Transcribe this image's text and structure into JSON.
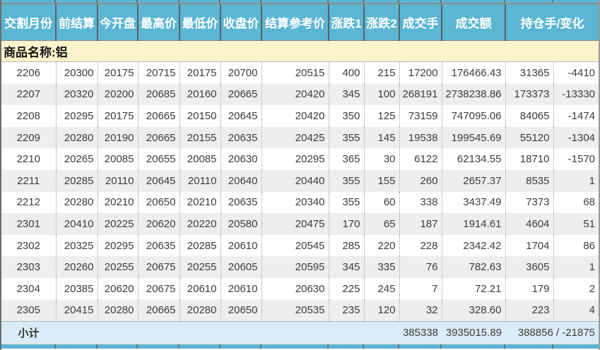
{
  "table": {
    "headers": [
      "交割月份",
      "前结算",
      "今开盘",
      "最高价",
      "最低价",
      "收盘价",
      "结算参考价",
      "涨跌1",
      "涨跌2",
      "成交手",
      "成交额",
      "持仓手/变化"
    ],
    "product_label": "商品名称:铝",
    "rows": [
      [
        "2206",
        "20300",
        "20175",
        "20715",
        "20175",
        "20700",
        "20515",
        "400",
        "215",
        "17200",
        "176466.43",
        "31365",
        "-4410"
      ],
      [
        "2207",
        "20320",
        "20200",
        "20685",
        "20160",
        "20665",
        "20420",
        "345",
        "100",
        "268191",
        "2738238.86",
        "173373",
        "-13330"
      ],
      [
        "2208",
        "20295",
        "20175",
        "20665",
        "20150",
        "20645",
        "20420",
        "350",
        "125",
        "73159",
        "747095.06",
        "84065",
        "-1474"
      ],
      [
        "2209",
        "20280",
        "20190",
        "20665",
        "20155",
        "20635",
        "20425",
        "355",
        "145",
        "19538",
        "199545.69",
        "55120",
        "-1304"
      ],
      [
        "2210",
        "20265",
        "20085",
        "20655",
        "20085",
        "20630",
        "20295",
        "365",
        "30",
        "6122",
        "62134.55",
        "18710",
        "-1570"
      ],
      [
        "2211",
        "20285",
        "20110",
        "20645",
        "20110",
        "20640",
        "20440",
        "355",
        "155",
        "260",
        "2657.37",
        "8535",
        "1"
      ],
      [
        "2212",
        "20280",
        "20210",
        "20650",
        "20210",
        "20635",
        "20340",
        "355",
        "60",
        "338",
        "3437.49",
        "7373",
        "68"
      ],
      [
        "2301",
        "20410",
        "20225",
        "20620",
        "20220",
        "20580",
        "20475",
        "170",
        "65",
        "187",
        "1914.61",
        "4604",
        "51"
      ],
      [
        "2302",
        "20325",
        "20295",
        "20635",
        "20285",
        "20610",
        "20545",
        "285",
        "220",
        "228",
        "2342.42",
        "1704",
        "86"
      ],
      [
        "2303",
        "20260",
        "20255",
        "20675",
        "20255",
        "20605",
        "20595",
        "345",
        "335",
        "76",
        "782.63",
        "3605",
        "1"
      ],
      [
        "2304",
        "20385",
        "20620",
        "20675",
        "20610",
        "20610",
        "20630",
        "225",
        "245",
        "7",
        "72.21",
        "179",
        "2"
      ],
      [
        "2305",
        "20415",
        "20280",
        "20665",
        "20280",
        "20650",
        "20535",
        "235",
        "120",
        "32",
        "328.60",
        "223",
        "4"
      ]
    ],
    "subtotal": {
      "label": "小计",
      "volume": "385338",
      "turnover": "3935015.89",
      "oi_change": "388856 / -21875"
    }
  },
  "colors": {
    "header_bg": "#5bb6d4",
    "header_text": "#ffffff",
    "product_row_bg": "#fdf3cd",
    "row_alt_bg": "#eeeeee",
    "subtotal_bg": "#daecf7",
    "dotted_border": "#999999"
  }
}
